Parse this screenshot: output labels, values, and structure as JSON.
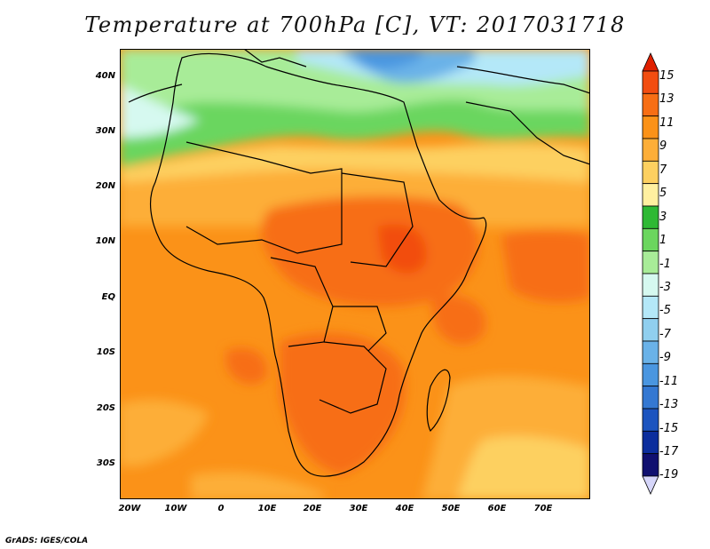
{
  "title": "Temperature at 700hPa [C], VT: 2017031718",
  "credit": "GrADS: IGES/COLA",
  "map": {
    "lon_range": [
      -25,
      80
    ],
    "lat_range": [
      -37,
      45
    ],
    "lat_ticks": [
      "40N",
      "30N",
      "20N",
      "10N",
      "EQ",
      "10S",
      "20S",
      "30S"
    ],
    "lon_ticks": [
      "20W",
      "10W",
      "0",
      "10E",
      "20E",
      "30E",
      "40E",
      "50E",
      "60E",
      "70E"
    ],
    "boundary_color": "#000000"
  },
  "colorbar": {
    "labels": [
      "15",
      "13",
      "11",
      "9",
      "7",
      "5",
      "3",
      "1",
      "-1",
      "-3",
      "-5",
      "-7",
      "-9",
      "-11",
      "-13",
      "-15",
      "-17",
      "-19"
    ],
    "colors": [
      "#e02000",
      "#f24d10",
      "#f76e14",
      "#fb9218",
      "#fdae38",
      "#fdd060",
      "#fff0a0",
      "#2eb934",
      "#6bd65e",
      "#a8ec98",
      "#d6f9f0",
      "#b4e8f8",
      "#90cfef",
      "#6ab2e8",
      "#4a96e0",
      "#3478d2",
      "#1c54bf",
      "#0c2e9d",
      "#101070",
      "#d6d6fa"
    ]
  }
}
